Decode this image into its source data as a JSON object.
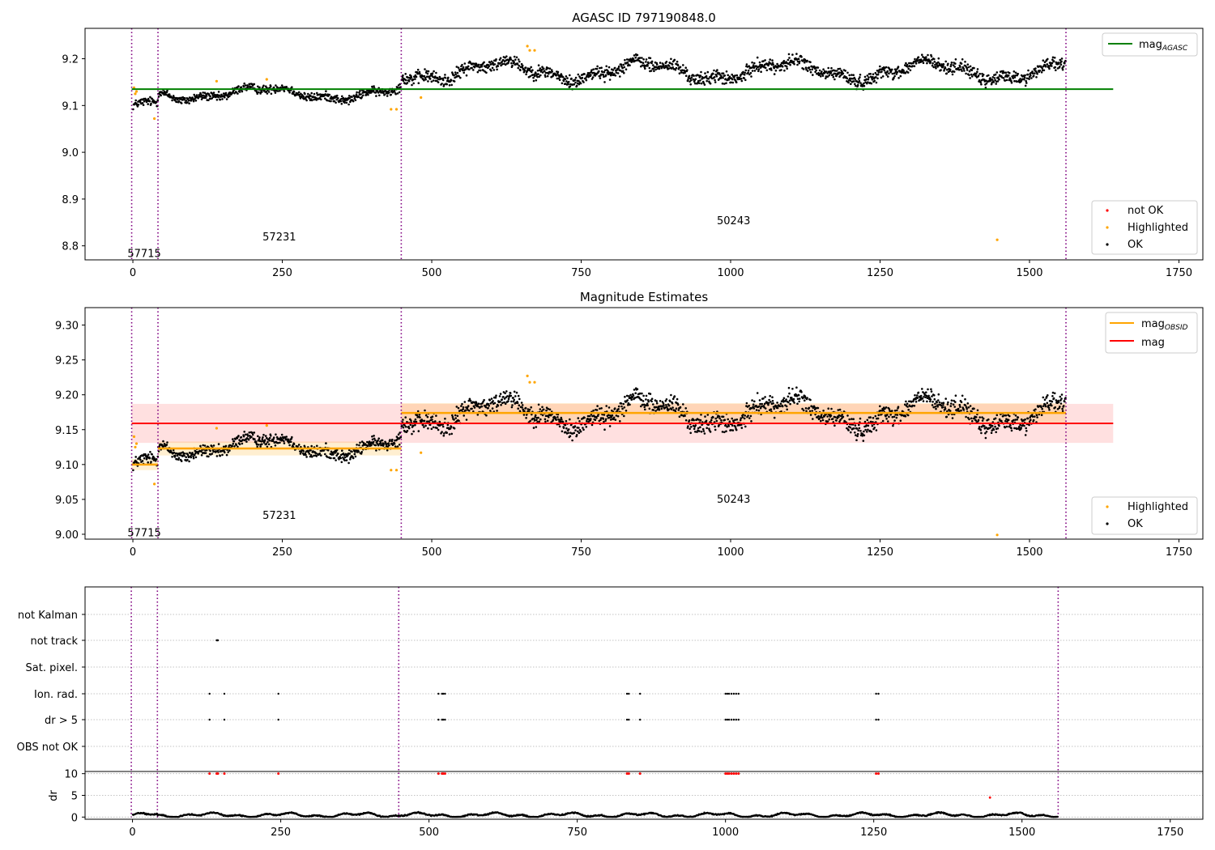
{
  "chart_data": [
    {
      "type": "scatter",
      "title": "AGASC ID 797190848.0",
      "xlim": [
        -80,
        1790
      ],
      "ylim": [
        8.77,
        9.265
      ],
      "x_ticks": [
        0,
        250,
        500,
        750,
        1000,
        1250,
        1500,
        1750
      ],
      "x_tick_labels": [
        "0",
        "250",
        "500",
        "750",
        "1000",
        "1250",
        "1500",
        "1750"
      ],
      "y_ticks": [
        8.8,
        8.9,
        9.0,
        9.1,
        9.2
      ],
      "y_tick_labels": [
        "8.8",
        "8.9",
        "9.0",
        "9.1",
        "9.2"
      ],
      "obsid_boundaries": [
        -2,
        42,
        449,
        1561
      ],
      "obsid_labels": [
        {
          "text": "57715",
          "x": 19,
          "y": 8.785
        },
        {
          "text": "57231",
          "x": 245,
          "y": 8.82
        },
        {
          "text": "50243",
          "x": 1005,
          "y": 8.855
        }
      ],
      "hline": {
        "value": 9.135,
        "x_range": [
          -2,
          1640
        ],
        "color": "#008000"
      },
      "segments": [
        {
          "x0": 0,
          "x1": 42,
          "mean": 9.1,
          "amp": 0.01,
          "noise": 0.008
        },
        {
          "x0": 42,
          "x1": 449,
          "mean": 9.126,
          "amp": 0.012,
          "noise": 0.008
        },
        {
          "x0": 449,
          "x1": 1561,
          "mean": 9.174,
          "amp": 0.018,
          "noise": 0.012
        }
      ],
      "highlighted": [
        [
          2,
          9.138
        ],
        [
          4,
          9.125
        ],
        [
          6,
          9.13
        ],
        [
          36,
          9.072
        ],
        [
          140,
          9.152
        ],
        [
          224,
          9.156
        ],
        [
          432,
          9.092
        ],
        [
          441,
          9.092
        ],
        [
          482,
          9.117
        ],
        [
          660,
          9.227
        ],
        [
          664,
          9.218
        ],
        [
          672,
          9.218
        ],
        [
          1446,
          8.813
        ]
      ],
      "legend_top": [
        {
          "label": "mag",
          "sub": "AGASC",
          "color": "#008000"
        }
      ],
      "legend_bottom": [
        {
          "label": "not OK",
          "color": "#ff0000"
        },
        {
          "label": "Highlighted",
          "color": "#ffa500"
        },
        {
          "label": "OK",
          "color": "#000000"
        }
      ]
    },
    {
      "type": "scatter",
      "title": "Magnitude Estimates",
      "xlim": [
        -80,
        1790
      ],
      "ylim": [
        8.993,
        9.325
      ],
      "x_ticks": [
        0,
        250,
        500,
        750,
        1000,
        1250,
        1500,
        1750
      ],
      "x_tick_labels": [
        "0",
        "250",
        "500",
        "750",
        "1000",
        "1250",
        "1500",
        "1750"
      ],
      "y_ticks": [
        9.0,
        9.05,
        9.1,
        9.15,
        9.2,
        9.25,
        9.3
      ],
      "y_tick_labels": [
        "9.00",
        "9.05",
        "9.10",
        "9.15",
        "9.20",
        "9.25",
        "9.30"
      ],
      "obsid_boundaries": [
        -2,
        42,
        449,
        1561
      ],
      "obsid_labels": [
        {
          "text": "57715",
          "x": 19,
          "y": 9.003
        },
        {
          "text": "57231",
          "x": 245,
          "y": 9.028
        },
        {
          "text": "50243",
          "x": 1005,
          "y": 9.051
        }
      ],
      "mag_line": {
        "value": 9.159,
        "band": [
          9.131,
          9.187
        ],
        "x_range": [
          -2,
          1640
        ],
        "color": "#ff0000"
      },
      "obsid_mags": [
        {
          "x0": -2,
          "x1": 42,
          "value": 9.1,
          "band": [
            9.092,
            9.108
          ]
        },
        {
          "x0": 42,
          "x1": 449,
          "value": 9.123,
          "band": [
            9.113,
            9.133
          ]
        },
        {
          "x0": 449,
          "x1": 1561,
          "value": 9.174,
          "band": [
            9.16,
            9.188
          ]
        }
      ],
      "highlighted": [
        [
          2,
          9.14
        ],
        [
          4,
          9.125
        ],
        [
          6,
          9.13
        ],
        [
          36,
          9.072
        ],
        [
          140,
          9.152
        ],
        [
          224,
          9.156
        ],
        [
          432,
          9.092
        ],
        [
          441,
          9.092
        ],
        [
          482,
          9.117
        ],
        [
          660,
          9.227
        ],
        [
          664,
          9.218
        ],
        [
          672,
          9.218
        ],
        [
          1446,
          8.999
        ]
      ],
      "legend_top": [
        {
          "label": "mag",
          "sub": "OBSID",
          "color": "#ffa500"
        },
        {
          "label": "mag",
          "sub": "",
          "color": "#ff0000"
        }
      ],
      "legend_bottom": [
        {
          "label": "Highlighted",
          "color": "#ffa500"
        },
        {
          "label": "OK",
          "color": "#000000"
        }
      ]
    },
    {
      "type": "scatter",
      "title": "",
      "xlim": [
        -80,
        1805
      ],
      "x_ticks": [
        0,
        250,
        500,
        750,
        1000,
        1250,
        1500,
        1750
      ],
      "x_tick_labels": [
        "0",
        "250",
        "500",
        "750",
        "1000",
        "1250",
        "1500",
        "1750"
      ],
      "flag_rows": [
        "not Kalman",
        "not track",
        "Sat. pixel.",
        "Ion. rad.",
        "dr > 5",
        "OBS not OK"
      ],
      "flag_points": {
        "not Kalman": [],
        "not track": [
          142,
          143,
          144
        ],
        "Sat. pixel.": [],
        "Ion. rad.": [
          130,
          155,
          246,
          516,
          522,
          524,
          527,
          834,
          837,
          856,
          1000,
          1003,
          1006,
          1010,
          1014,
          1018,
          1022,
          1254,
          1258
        ],
        "dr > 5": [
          130,
          155,
          246,
          516,
          522,
          524,
          527,
          834,
          837,
          856,
          1000,
          1003,
          1006,
          1010,
          1014,
          1018,
          1022,
          1254,
          1258
        ],
        "OBS not OK": []
      },
      "dr_ylabel": "dr",
      "dr_ylim": [
        -0.5,
        10.5
      ],
      "dr_ticks": [
        0,
        5,
        10
      ],
      "dr_tick_labels": [
        "0",
        "5",
        "10"
      ],
      "dr_high": [
        130,
        142,
        144,
        155,
        246,
        516,
        522,
        524,
        527,
        834,
        837,
        856,
        1000,
        1003,
        1006,
        1010,
        1014,
        1018,
        1022,
        1254,
        1258
      ],
      "dr_outlier": [
        [
          1446,
          4.5
        ]
      ],
      "obsid_boundaries": [
        -2,
        42,
        449,
        1561
      ]
    }
  ]
}
